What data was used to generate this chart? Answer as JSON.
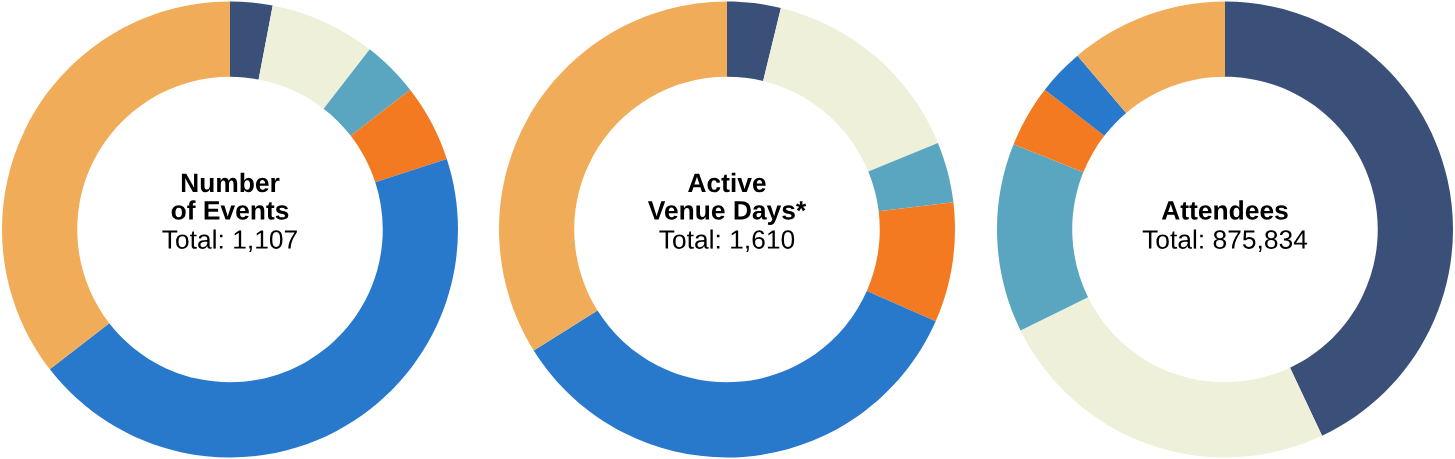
{
  "chart_data": [
    {
      "type": "donut",
      "title": "Number\nof Events",
      "subtitle": "Total: 1,107",
      "categories": [
        null,
        null,
        null,
        null,
        null,
        null
      ],
      "values": [
        3,
        7.5,
        4,
        5.5,
        44.5,
        35.5
      ],
      "colors": [
        "#3a5078",
        "#eff0da",
        "#5aa6c0",
        "#f47a22",
        "#2878cc",
        "#f1ac59"
      ]
    },
    {
      "type": "donut",
      "title": "Active\nVenue Days*",
      "subtitle": "Total: 1,610",
      "categories": [
        null,
        null,
        null,
        null,
        null,
        null
      ],
      "values": [
        3.8,
        15,
        4.3,
        8.5,
        34.5,
        33.9
      ],
      "colors": [
        "#3a5078",
        "#eff0da",
        "#5aa6c0",
        "#f47a22",
        "#2878cc",
        "#f1ac59"
      ]
    },
    {
      "type": "donut",
      "title": "Attendees",
      "subtitle": "Total: 875,834",
      "categories": [
        null,
        null,
        null,
        null,
        null,
        null
      ],
      "values": [
        43,
        24.7,
        13.4,
        4.4,
        3.3,
        11.2
      ],
      "colors": [
        "#3a5078",
        "#eff0da",
        "#5aa6c0",
        "#f47a22",
        "#2878cc",
        "#f1ac59"
      ]
    }
  ]
}
